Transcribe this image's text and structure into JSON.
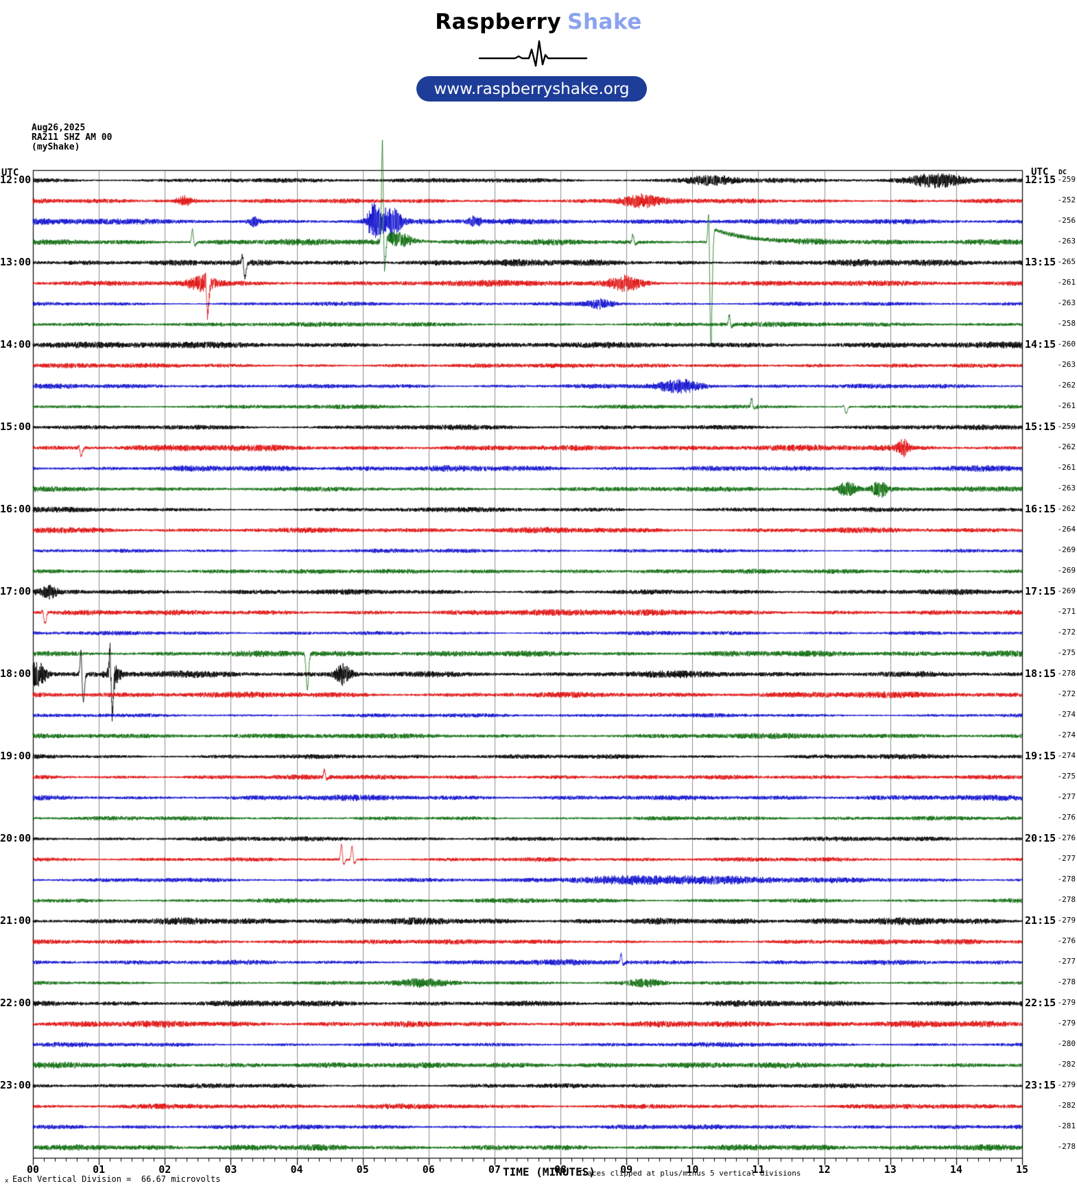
{
  "header": {
    "brand_primary": "Raspberry",
    "brand_secondary": "Shake",
    "brand_secondary_color": "#8ba3ee",
    "url_button": "www.raspberryshake.org",
    "url_button_bg": "#1e3d99"
  },
  "station": {
    "date": "Aug26,2025",
    "code": "RA211 SHZ AM 00",
    "network": "(myShake)"
  },
  "axis": {
    "utc_left": "UTC",
    "utc_right": "UTC",
    "dc_header": "DC",
    "x_title": "TIME (MINUTES)",
    "clip_note": "Traces clipped at plus/minus 5 vertical divisions",
    "scale_note": "Each Vertical Division =  66.67 microvolts",
    "corner_mark": "x",
    "minute_labels": [
      "00",
      "01",
      "02",
      "03",
      "04",
      "05",
      "06",
      "07",
      "08",
      "09",
      "10",
      "11",
      "12",
      "13",
      "14",
      "15"
    ]
  },
  "chart_data": {
    "type": "seismogram-helicorder",
    "date": "Aug26,2025",
    "station": "RA211 SHZ AM 00 (myShake)",
    "row_duration_minutes": 15,
    "x_range_minutes": [
      0,
      15
    ],
    "rows_per_hour": 4,
    "total_rows": 48,
    "clip_divisions": 5,
    "microvolts_per_division": 66.67,
    "grid": "vertical-minute-lines",
    "trace_colors": [
      "#000000",
      "#dd0000",
      "#0000cc",
      "#006600"
    ],
    "left_hour_labels": [
      "12:00",
      "13:00",
      "14:00",
      "15:00",
      "16:00",
      "17:00",
      "18:00",
      "19:00",
      "20:00",
      "21:00",
      "22:00",
      "23:00"
    ],
    "right_hour_labels": [
      "12:15",
      "13:15",
      "14:15",
      "15:15",
      "16:15",
      "17:15",
      "18:15",
      "19:15",
      "20:15",
      "21:15",
      "22:15",
      "23:15"
    ],
    "dc_values": [
      -259,
      -252,
      -256,
      -263,
      -265,
      -261,
      -263,
      -258,
      -260,
      -263,
      -262,
      -261,
      -259,
      -262,
      -261,
      -263,
      -262,
      -264,
      -269,
      -269,
      -269,
      -271,
      -272,
      -275,
      -278,
      -272,
      -274,
      -274,
      -274,
      -275,
      -277,
      -276,
      -276,
      -277,
      -278,
      -278,
      -279,
      -276,
      -277,
      -278,
      -279,
      -279,
      -280,
      -282,
      -279,
      -282,
      -281,
      -278
    ],
    "events": [
      {
        "r": 0,
        "k": "burst",
        "m": 10.3,
        "w": 0.25,
        "a": 0.2
      },
      {
        "r": 0,
        "k": "burst",
        "m": 13.7,
        "w": 0.3,
        "a": 0.28
      },
      {
        "r": 1,
        "k": "burst",
        "m": 2.3,
        "w": 0.08,
        "a": 0.2
      },
      {
        "r": 1,
        "k": "burst",
        "m": 9.2,
        "w": 0.2,
        "a": 0.27
      },
      {
        "r": 2,
        "k": "burst",
        "m": 3.35,
        "w": 0.05,
        "a": 0.2
      },
      {
        "r": 2,
        "k": "burst",
        "m": 5.17,
        "w": 0.07,
        "a": 0.87
      },
      {
        "r": 2,
        "k": "burst",
        "m": 5.43,
        "w": 0.1,
        "a": 0.73
      },
      {
        "r": 2,
        "k": "burst",
        "m": 6.7,
        "w": 0.06,
        "a": 0.2
      },
      {
        "r": 3,
        "k": "spike",
        "m": 2.42,
        "p": 0.67,
        "u": 0.2
      },
      {
        "r": 3,
        "k": "spike",
        "m": 5.3,
        "p": 5.3,
        "u": 1.5,
        "t": 0.27,
        "tl": 0.3
      },
      {
        "r": 3,
        "k": "burst",
        "m": 5.55,
        "w": 0.15,
        "a": 0.27
      },
      {
        "r": 3,
        "k": "spike",
        "m": 9.1,
        "p": 0.4,
        "u": 0.13
      },
      {
        "r": 3,
        "k": "spike",
        "m": 10.25,
        "p": 2.7,
        "u": 5.3,
        "t": 0.67,
        "tl": 0.5
      },
      {
        "r": 4,
        "k": "spike",
        "m": 3.18,
        "p": 0.53,
        "u": 0.73
      },
      {
        "r": 5,
        "k": "burst",
        "m": 2.55,
        "w": 0.15,
        "a": 0.3
      },
      {
        "r": 5,
        "k": "spike",
        "m": 2.62,
        "p": 0.5,
        "u": 1.47
      },
      {
        "r": 5,
        "k": "burst",
        "m": 9.0,
        "w": 0.18,
        "a": 0.33
      },
      {
        "r": 6,
        "k": "burst",
        "m": 8.6,
        "w": 0.15,
        "a": 0.2
      },
      {
        "r": 7,
        "k": "spike",
        "m": 10.56,
        "p": 0.47,
        "u": 0.13
      },
      {
        "r": 10,
        "k": "burst",
        "m": 9.8,
        "w": 0.22,
        "a": 0.27
      },
      {
        "r": 11,
        "k": "spike",
        "m": 10.9,
        "p": 0.43,
        "u": 0.1
      },
      {
        "r": 11,
        "k": "spike",
        "m": 12.3,
        "p": 0.13,
        "u": 0.33
      },
      {
        "r": 13,
        "k": "spike",
        "m": 0.7,
        "p": 0.17,
        "u": 0.4
      },
      {
        "r": 13,
        "k": "burst",
        "m": 13.2,
        "w": 0.06,
        "a": 0.33
      },
      {
        "r": 15,
        "k": "burst",
        "m": 12.35,
        "w": 0.1,
        "a": 0.3
      },
      {
        "r": 15,
        "k": "burst",
        "m": 12.85,
        "w": 0.08,
        "a": 0.37
      },
      {
        "r": 20,
        "k": "burst",
        "m": 0.25,
        "w": 0.08,
        "a": 0.23
      },
      {
        "r": 21,
        "k": "spike",
        "m": 0.15,
        "p": 0.2,
        "u": 0.53
      },
      {
        "r": 23,
        "k": "spike",
        "m": 4.13,
        "p": 0.17,
        "u": 1.73
      },
      {
        "r": 24,
        "k": "burst",
        "m": 0.07,
        "w": 0.1,
        "a": 0.6
      },
      {
        "r": 24,
        "k": "spike",
        "m": 0.73,
        "p": 1.5,
        "u": 1.33
      },
      {
        "r": 24,
        "k": "spike",
        "m": 1.17,
        "p": 1.67,
        "u": 1.83
      },
      {
        "r": 24,
        "k": "burst",
        "m": 1.22,
        "w": 0.07,
        "a": 0.47
      },
      {
        "r": 24,
        "k": "burst",
        "m": 4.7,
        "w": 0.09,
        "a": 0.47
      },
      {
        "r": 29,
        "k": "spike",
        "m": 4.42,
        "p": 0.4,
        "u": 0.1
      },
      {
        "r": 33,
        "k": "spike",
        "m": 4.68,
        "p": 0.83,
        "u": 0.27
      },
      {
        "r": 33,
        "k": "spike",
        "m": 4.84,
        "p": 0.73,
        "u": 0.2
      },
      {
        "r": 34,
        "k": "burst",
        "m": 10.0,
        "w": 1.5,
        "a": 0.15
      },
      {
        "r": 38,
        "k": "spike",
        "m": 8.92,
        "p": 0.43,
        "u": 0.13
      },
      {
        "r": 39,
        "k": "burst",
        "m": 5.9,
        "w": 0.3,
        "a": 0.13
      },
      {
        "r": 39,
        "k": "burst",
        "m": 9.3,
        "w": 0.2,
        "a": 0.17
      }
    ]
  }
}
